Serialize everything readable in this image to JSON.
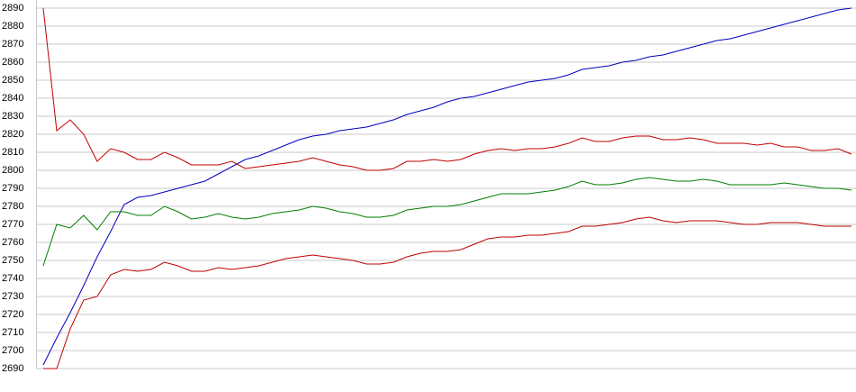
{
  "chart_data": {
    "type": "line",
    "x": [
      0,
      1,
      2,
      3,
      4,
      5,
      6,
      7,
      8,
      9,
      10,
      11,
      12,
      13,
      14,
      15,
      16,
      17,
      18,
      19,
      20,
      21,
      22,
      23,
      24,
      25,
      26,
      27,
      28,
      29,
      30,
      31,
      32,
      33,
      34,
      35,
      36,
      37,
      38,
      39,
      40,
      41,
      42,
      43,
      44,
      45,
      46,
      47,
      48,
      49,
      50,
      51,
      52,
      53,
      54,
      55,
      56,
      57,
      58,
      59,
      60
    ],
    "xlim": [
      0,
      60
    ],
    "ylim": [
      2690,
      2890
    ],
    "yticks": [
      2690,
      2700,
      2710,
      2720,
      2730,
      2740,
      2750,
      2760,
      2770,
      2780,
      2790,
      2800,
      2810,
      2820,
      2830,
      2840,
      2850,
      2860,
      2870,
      2880,
      2890
    ],
    "grid": true,
    "series": [
      {
        "color": "#0000c0",
        "values": [
          2692,
          2707,
          2721,
          2736,
          2752,
          2766,
          2781,
          2785,
          2786,
          2788,
          2790,
          2792,
          2794,
          2798,
          2802,
          2806,
          2808,
          2811,
          2814,
          2817,
          2819,
          2820,
          2822,
          2823,
          2824,
          2826,
          2828,
          2831,
          2833,
          2835,
          2838,
          2840,
          2841,
          2843,
          2845,
          2847,
          2849,
          2850,
          2851,
          2853,
          2856,
          2857,
          2858,
          2860,
          2861,
          2863,
          2864,
          2866,
          2868,
          2870,
          2872,
          2873,
          2875,
          2877,
          2879,
          2881,
          2883,
          2885,
          2887,
          2889,
          2890
        ]
      },
      {
        "color": "#c00000",
        "values": [
          2890,
          2822,
          2828,
          2820,
          2805,
          2812,
          2810,
          2806,
          2806,
          2810,
          2807,
          2803,
          2803,
          2803,
          2805,
          2801,
          2802,
          2803,
          2804,
          2805,
          2807,
          2805,
          2803,
          2802,
          2800,
          2800,
          2801,
          2805,
          2805,
          2806,
          2805,
          2806,
          2809,
          2811,
          2812,
          2811,
          2812,
          2812,
          2813,
          2815,
          2818,
          2816,
          2816,
          2818,
          2819,
          2819,
          2817,
          2817,
          2818,
          2817,
          2815,
          2815,
          2815,
          2814,
          2815,
          2813,
          2813,
          2811,
          2811,
          2812,
          2809
        ]
      },
      {
        "color": "#008000",
        "values": [
          2747,
          2770,
          2768,
          2775,
          2767,
          2777,
          2777,
          2775,
          2775,
          2780,
          2777,
          2773,
          2774,
          2776,
          2774,
          2773,
          2774,
          2776,
          2777,
          2778,
          2780,
          2779,
          2777,
          2776,
          2774,
          2774,
          2775,
          2778,
          2779,
          2780,
          2780,
          2781,
          2783,
          2785,
          2787,
          2787,
          2787,
          2788,
          2789,
          2791,
          2794,
          2792,
          2792,
          2793,
          2795,
          2796,
          2795,
          2794,
          2794,
          2795,
          2794,
          2792,
          2792,
          2792,
          2792,
          2793,
          2792,
          2791,
          2790,
          2790,
          2789
        ]
      },
      {
        "color": "#c00000",
        "values": [
          2690,
          2690,
          2712,
          2728,
          2730,
          2742,
          2745,
          2744,
          2745,
          2749,
          2747,
          2744,
          2744,
          2746,
          2745,
          2746,
          2747,
          2749,
          2751,
          2752,
          2753,
          2752,
          2751,
          2750,
          2748,
          2748,
          2749,
          2752,
          2754,
          2755,
          2755,
          2756,
          2759,
          2762,
          2763,
          2763,
          2764,
          2764,
          2765,
          2766,
          2769,
          2769,
          2770,
          2771,
          2773,
          2774,
          2772,
          2771,
          2772,
          2772,
          2772,
          2771,
          2770,
          2770,
          2771,
          2771,
          2771,
          2770,
          2769,
          2769,
          2769
        ]
      }
    ]
  }
}
